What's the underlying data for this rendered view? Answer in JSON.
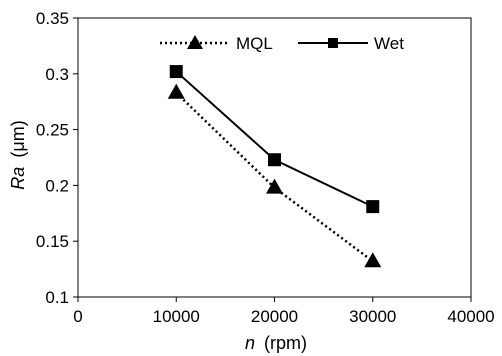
{
  "chart_data": {
    "type": "line",
    "x": [
      10000,
      20000,
      30000
    ],
    "series": [
      {
        "name": "MQL",
        "values": [
          0.283,
          0.198,
          0.132
        ],
        "color": "#000000",
        "line_style": "dotted",
        "marker": "triangle"
      },
      {
        "name": "Wet",
        "values": [
          0.302,
          0.223,
          0.181
        ],
        "color": "#000000",
        "line_style": "solid",
        "marker": "square"
      }
    ],
    "xlabel_symbol": "n",
    "xlabel_unit": "(rpm)",
    "ylabel_symbol": "Ra",
    "ylabel_unit": "(μm)",
    "xlim": [
      0,
      40000
    ],
    "ylim": [
      0.1,
      0.35
    ],
    "xticks": [
      0,
      10000,
      20000,
      30000,
      40000
    ],
    "yticks": [
      0.1,
      0.15,
      0.2,
      0.25,
      0.3,
      0.35
    ],
    "xtick_labels": [
      "0",
      "10000",
      "20000",
      "30000",
      "40000"
    ],
    "ytick_labels": [
      "0.1",
      "0.15",
      "0.2",
      "0.25",
      "0.3",
      "0.35"
    ],
    "grid": false,
    "legend_position": "top-right"
  }
}
